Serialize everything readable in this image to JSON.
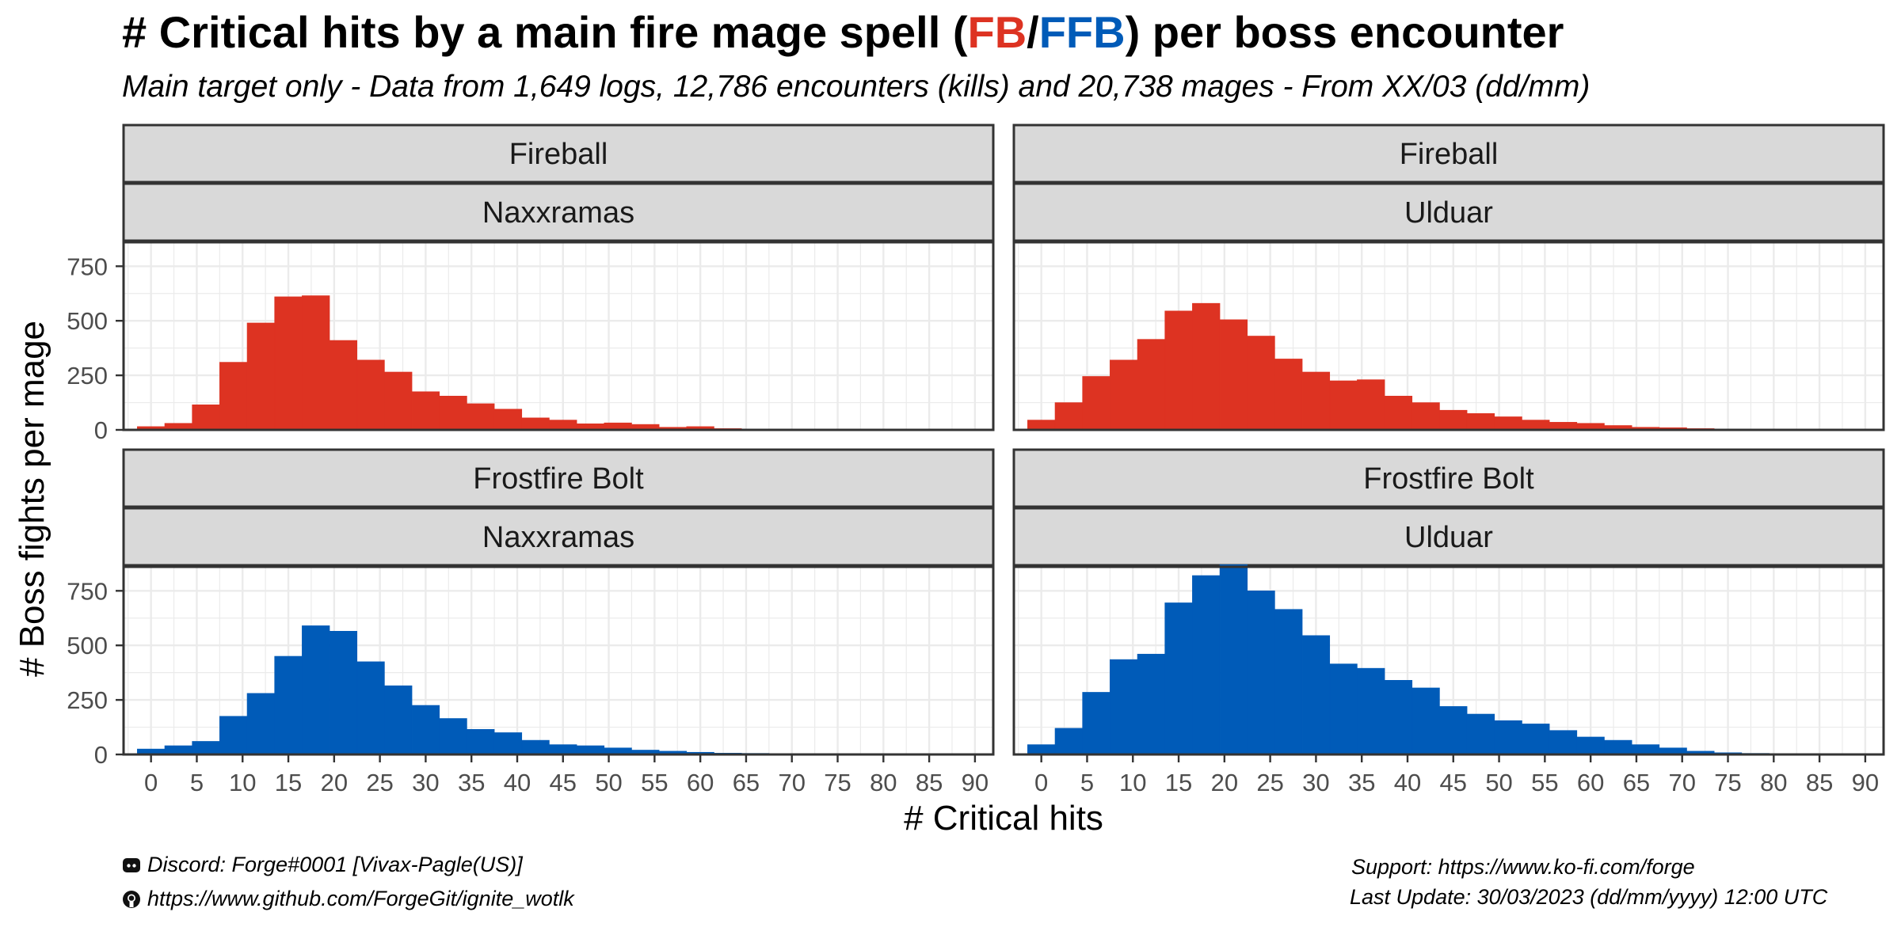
{
  "header": {
    "title_pre": "# Critical hits by a main fire mage spell (",
    "title_fb": "FB",
    "title_sep": "/",
    "title_ffb": "FFB",
    "title_post": ") per boss encounter",
    "subtitle": "Main target only - Data from 1,649 logs, 12,786 encounters (kills) and 20,738 mages - From XX/03 (dd/mm)"
  },
  "footer": {
    "discord_icon": "discord-icon",
    "discord": "Discord: Forge#0001 [Vivax-Pagle(US)]",
    "github_icon": "github-icon",
    "github": "https://www.github.com/ForgeGit/ignite_wotlk",
    "support": "Support: https://www.ko-fi.com/forge",
    "last_update": "Last Update: 30/03/2023 (dd/mm/yyyy) 12:00 UTC"
  },
  "colors": {
    "fireball": "#DD3322",
    "frostfire": "#005BB8",
    "strip": "#D9D9D9",
    "grid": "#EBEBEB"
  },
  "chart_data": {
    "type": "bar",
    "xlabel": "# Critical hits",
    "ylabel": "# Boss fights per mage",
    "xlim": [
      -3,
      92
    ],
    "ylim": [
      0,
      860
    ],
    "x_ticks": [
      0,
      5,
      10,
      15,
      20,
      25,
      30,
      35,
      40,
      45,
      50,
      55,
      60,
      65,
      70,
      75,
      80,
      85,
      90
    ],
    "y_ticks": [
      0,
      250,
      500,
      750
    ],
    "bin_width": 3,
    "bin_centers": [
      0,
      3,
      6,
      9,
      12,
      15,
      18,
      21,
      24,
      27,
      30,
      33,
      36,
      39,
      42,
      45,
      48,
      51,
      54,
      57,
      60,
      63,
      66,
      69,
      72,
      75,
      78,
      81,
      84,
      87,
      90
    ],
    "panels": [
      {
        "spell": "Fireball",
        "raid": "Naxxramas",
        "values": [
          15,
          30,
          115,
          310,
          490,
          610,
          615,
          410,
          320,
          265,
          175,
          155,
          120,
          95,
          55,
          45,
          28,
          32,
          25,
          12,
          15,
          6,
          4,
          2,
          1,
          1,
          0,
          0,
          0,
          0,
          0
        ]
      },
      {
        "spell": "Fireball",
        "raid": "Ulduar",
        "values": [
          45,
          125,
          245,
          320,
          415,
          545,
          580,
          505,
          430,
          325,
          265,
          225,
          230,
          155,
          125,
          90,
          75,
          60,
          45,
          35,
          30,
          20,
          12,
          10,
          6,
          4,
          2,
          1,
          1,
          0,
          0
        ]
      },
      {
        "spell": "Frostfire Bolt",
        "raid": "Naxxramas",
        "values": [
          25,
          40,
          60,
          175,
          280,
          450,
          590,
          565,
          425,
          315,
          225,
          165,
          115,
          100,
          65,
          45,
          40,
          30,
          20,
          15,
          10,
          6,
          5,
          3,
          2,
          2,
          1,
          1,
          0,
          0,
          0
        ]
      },
      {
        "spell": "Frostfire Bolt",
        "raid": "Ulduar",
        "values": [
          45,
          120,
          285,
          435,
          460,
          695,
          820,
          870,
          750,
          665,
          545,
          415,
          395,
          340,
          305,
          220,
          185,
          155,
          140,
          110,
          80,
          65,
          45,
          30,
          15,
          8,
          5,
          3,
          2,
          1,
          0
        ]
      }
    ]
  }
}
